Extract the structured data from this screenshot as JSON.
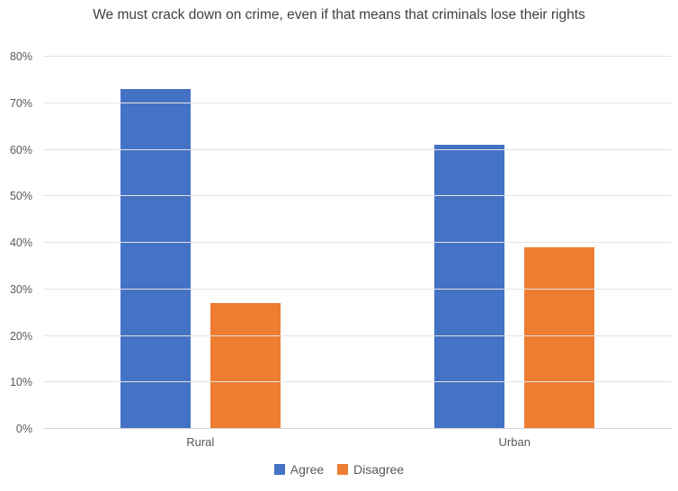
{
  "chart_data": {
    "type": "bar",
    "title": "We must crack down on crime, even if that means that criminals lose their rights",
    "categories": [
      "Rural",
      "Urban"
    ],
    "series": [
      {
        "name": "Agree",
        "color": "#4472C4",
        "values": [
          73,
          61
        ]
      },
      {
        "name": "Disagree",
        "color": "#ED7D31",
        "values": [
          27,
          39
        ]
      }
    ],
    "ylim": [
      0,
      80
    ],
    "y_ticks": [
      {
        "value": 0,
        "label": "0%"
      },
      {
        "value": 10,
        "label": "10%"
      },
      {
        "value": 20,
        "label": "20%"
      },
      {
        "value": 30,
        "label": "30%"
      },
      {
        "value": 40,
        "label": "40%"
      },
      {
        "value": 50,
        "label": "50%"
      },
      {
        "value": 60,
        "label": "60%"
      },
      {
        "value": 70,
        "label": "70%"
      },
      {
        "value": 80,
        "label": "80%"
      }
    ],
    "grid": true,
    "legend_position": "bottom",
    "colors": {
      "gridline": "#E3E3E3",
      "axis_line": "#D6D6D6",
      "title_text": "#404040",
      "tick_text": "#595959",
      "background": "#FFFFFF"
    }
  }
}
